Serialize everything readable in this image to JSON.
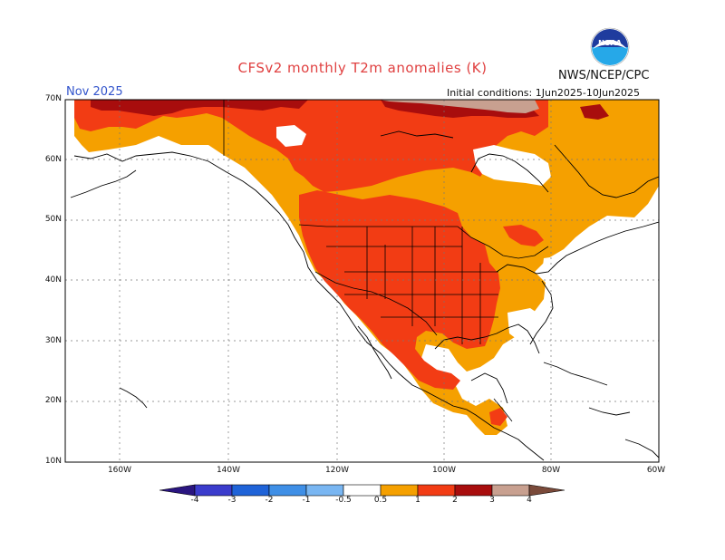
{
  "header": {
    "title": "CFSv2 monthly T2m anomalies (K)",
    "org": "NWS/NCEP/CPC",
    "month": "Nov 2025",
    "initial_conditions": "Initial conditions: 1Jun2025-10Jun2025",
    "logo_label": "NOAA"
  },
  "axes": {
    "lat_labels": [
      "70N",
      "60N",
      "50N",
      "40N",
      "30N",
      "20N",
      "10N"
    ],
    "lon_labels": [
      "160W",
      "140W",
      "120W",
      "100W",
      "80W",
      "60W"
    ]
  },
  "colorbar": {
    "tick_labels": [
      "-4",
      "-3",
      "-2",
      "-1",
      "-0.5",
      "0.5",
      "1",
      "2",
      "3",
      "4"
    ],
    "colors": {
      "lt_neg4": "#2a1580",
      "neg4_neg3": "#3b3ccc",
      "neg3_neg2": "#1f63d8",
      "neg2_neg1": "#3f8fe6",
      "neg1_neg05": "#79b6f2",
      "neutral": "#ffffff",
      "p05_1": "#f5a000",
      "p1_2": "#f23c14",
      "p2_3": "#a80d0d",
      "p3_4": "#c8a090",
      "gt4": "#7a4a3a"
    }
  }
}
